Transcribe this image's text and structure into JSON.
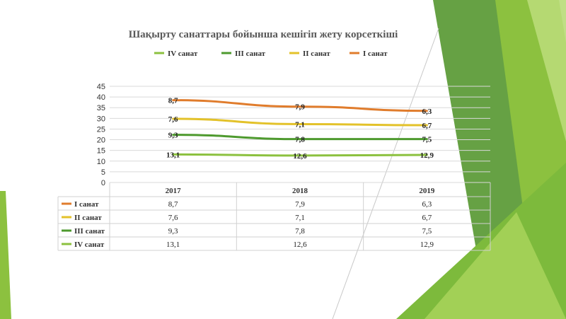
{
  "colors": {
    "series_I": "#E07C2C",
    "series_II": "#E3C22A",
    "series_III": "#4E9A2E",
    "series_IV": "#8CC13F",
    "grid": "#D9D9D9",
    "deco_dark": "#5E9C3A",
    "deco_light": "#9ACD45"
  },
  "chart_data": {
    "type": "line",
    "title": "Шақырту санаттары  бойынша кешігіп жету   корсеткіші",
    "categories": [
      "2017",
      "2018",
      "2019"
    ],
    "ylim": [
      0,
      45
    ],
    "yticks": [
      "0",
      "5",
      "10",
      "15",
      "20",
      "25",
      "30",
      "35",
      "40",
      "45"
    ],
    "grid": true,
    "legend_position": "top",
    "legend_order": [
      3,
      2,
      1,
      0
    ],
    "series": [
      {
        "name": "I санат",
        "color_key": "series_I",
        "plot": [
          38.5,
          35.5,
          33.5
        ],
        "labels": [
          "8,7",
          "7,9",
          "6,3"
        ]
      },
      {
        "name": "II санат",
        "color_key": "series_II",
        "plot": [
          29.8,
          27.3,
          26.8
        ],
        "labels": [
          "7,6",
          "7,1",
          "6,7"
        ]
      },
      {
        "name": "III санат",
        "color_key": "series_III",
        "plot": [
          22.3,
          20.3,
          20.3
        ],
        "labels": [
          "9,3",
          "7,8",
          "7,5"
        ]
      },
      {
        "name": "IV санат",
        "color_key": "series_IV",
        "plot": [
          13.1,
          12.6,
          12.9
        ],
        "labels": [
          "13,1",
          "12,6",
          "12,9"
        ]
      }
    ]
  }
}
